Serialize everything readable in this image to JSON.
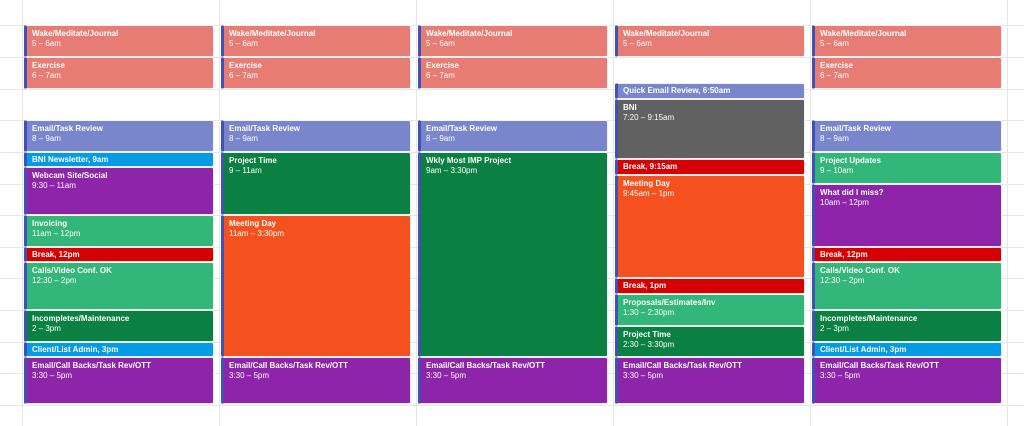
{
  "colors": {
    "salmon": "#e67c73",
    "lavender": "#7986cb",
    "peacock": "#039be5",
    "grape": "#8e24aa",
    "sage": "#33b679",
    "basil": "#0b8043",
    "tomato": "#d50000",
    "tangerine": "#f4511e",
    "graphite": "#616161"
  },
  "days": [
    {
      "events": [
        {
          "title": "Wake/Meditate/Journal",
          "time": "5 – 6am",
          "color": "salmon"
        },
        {
          "title": "Exercise",
          "time": "6 – 7am",
          "color": "salmon"
        },
        {
          "title": "Email/Task Review",
          "time": "8 – 9am",
          "color": "lavender"
        },
        {
          "title": "BNI Newsletter, 9am",
          "time": "",
          "color": "peacock"
        },
        {
          "title": "Webcam Site/Social",
          "time": "9:30 – 11am",
          "color": "grape"
        },
        {
          "title": "Invoicing",
          "time": "11am – 12pm",
          "color": "sage"
        },
        {
          "title": "Break, 12pm",
          "time": "",
          "color": "tomato"
        },
        {
          "title": "Calls/Video Conf. OK",
          "time": "12:30 – 2pm",
          "color": "sage"
        },
        {
          "title": "Incompletes/Maintenance",
          "time": "2 – 3pm",
          "color": "basil"
        },
        {
          "title": "Client/List Admin, 3pm",
          "time": "",
          "color": "peacock"
        },
        {
          "title": "Email/Call Backs/Task Rev/OTT",
          "time": "3:30 – 5pm",
          "color": "grape"
        }
      ]
    },
    {
      "events": [
        {
          "title": "Wake/Meditate/Journal",
          "time": "5 – 6am",
          "color": "salmon"
        },
        {
          "title": "Exercise",
          "time": "6 – 7am",
          "color": "salmon"
        },
        {
          "title": "Email/Task Review",
          "time": "8 – 9am",
          "color": "lavender"
        },
        {
          "title": "Project Time",
          "time": "9 – 11am",
          "color": "basil"
        },
        {
          "title": "Meeting Day",
          "time": "11am – 3:30pm",
          "color": "tangerine"
        },
        {
          "title": "Email/Call Backs/Task Rev/OTT",
          "time": "3:30 – 5pm",
          "color": "grape"
        }
      ]
    },
    {
      "events": [
        {
          "title": "Wake/Meditate/Journal",
          "time": "5 – 6am",
          "color": "salmon"
        },
        {
          "title": "Exercise",
          "time": "6 – 7am",
          "color": "salmon"
        },
        {
          "title": "Email/Task Review",
          "time": "8 – 9am",
          "color": "lavender"
        },
        {
          "title": "Wkly Most IMP Project",
          "time": "9am – 3:30pm",
          "color": "basil"
        },
        {
          "title": "Email/Call Backs/Task Rev/OTT",
          "time": "3:30 – 5pm",
          "color": "grape"
        }
      ]
    },
    {
      "events": [
        {
          "title": "Wake/Meditate/Journal",
          "time": "5 – 6am",
          "color": "salmon"
        },
        {
          "title": "Quick Email Review, 6:50am",
          "time": "",
          "color": "lavender"
        },
        {
          "title": "BNI",
          "time": "7:20 – 9:15am",
          "color": "graphite"
        },
        {
          "title": "Break, 9:15am",
          "time": "",
          "color": "tomato"
        },
        {
          "title": "Meeting Day",
          "time": "9:45am – 1pm",
          "color": "tangerine"
        },
        {
          "title": "Break, 1pm",
          "time": "",
          "color": "tomato"
        },
        {
          "title": "Proposals/Estimates/Inv",
          "time": "1:30 – 2:30pm",
          "color": "sage"
        },
        {
          "title": "Project Time",
          "time": "2:30 – 3:30pm",
          "color": "basil"
        },
        {
          "title": "Email/Call Backs/Task Rev/OTT",
          "time": "3:30 – 5pm",
          "color": "grape"
        }
      ]
    },
    {
      "events": [
        {
          "title": "Wake/Meditate/Journal",
          "time": "5 – 6am",
          "color": "salmon"
        },
        {
          "title": "Exercise",
          "time": "6 – 7am",
          "color": "salmon"
        },
        {
          "title": "Email/Task Review",
          "time": "8 – 9am",
          "color": "lavender"
        },
        {
          "title": "Project Updates",
          "time": "9 – 10am",
          "color": "sage"
        },
        {
          "title": "What did I miss?",
          "time": "10am – 12pm",
          "color": "grape"
        },
        {
          "title": "Break, 12pm",
          "time": "",
          "color": "tomato"
        },
        {
          "title": "Calls/Video Conf. OK",
          "time": "12:30 – 2pm",
          "color": "sage"
        },
        {
          "title": "Incompletes/Maintenance",
          "time": "2 – 3pm",
          "color": "basil"
        },
        {
          "title": "Client/List Admin, 3pm",
          "time": "",
          "color": "peacock"
        },
        {
          "title": "Email/Call Backs/Task Rev/OTT",
          "time": "3:30 – 5pm",
          "color": "grape"
        }
      ]
    }
  ]
}
